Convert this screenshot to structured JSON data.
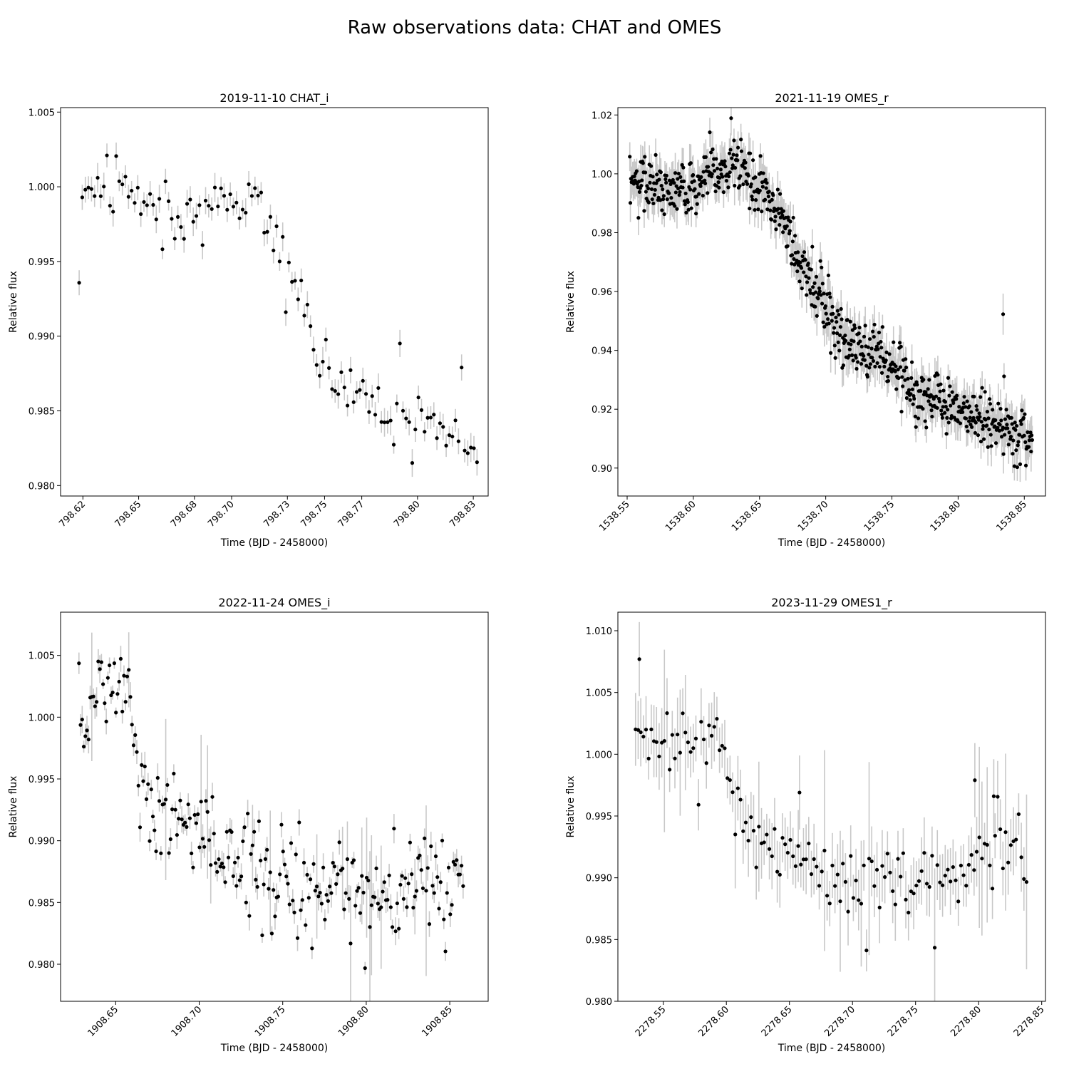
{
  "figure": {
    "title": "Raw observations data: CHAT and OMES"
  },
  "chart_data": [
    {
      "type": "scatter",
      "title": "2019-11-10 CHAT_i",
      "xlabel": "Time (BJD - 2458000)",
      "ylabel": "Relative flux",
      "xlim": [
        798.608,
        798.838
      ],
      "ylim": [
        0.9793,
        1.0053
      ],
      "xticks": [
        798.62,
        798.65,
        798.68,
        798.7,
        798.73,
        798.75,
        798.77,
        798.8,
        798.83
      ],
      "xtick_labels": [
        "798.62",
        "798.65",
        "798.68",
        "798.70",
        "798.73",
        "798.75",
        "798.77",
        "798.80",
        "798.83"
      ],
      "yticks": [
        0.98,
        0.985,
        0.99,
        0.995,
        1.0,
        1.005
      ],
      "ytick_labels": [
        "0.980",
        "0.985",
        "0.990",
        "0.995",
        "1.000",
        "1.005"
      ],
      "marker_color": "#000000",
      "errorbar_color": "#c8c8c8",
      "trend": [
        [
          798.618,
          0.9946
        ],
        [
          798.62,
          0.9992
        ],
        [
          798.628,
          0.9992
        ],
        [
          798.64,
          1.001
        ],
        [
          798.65,
          0.9992
        ],
        [
          798.66,
          0.9985
        ],
        [
          798.68,
          0.9987
        ],
        [
          798.7,
          0.9985
        ],
        [
          798.712,
          0.9988
        ],
        [
          798.72,
          0.997
        ],
        [
          798.728,
          0.9955
        ],
        [
          798.733,
          0.993
        ],
        [
          798.742,
          0.99
        ],
        [
          798.755,
          0.987
        ],
        [
          798.77,
          0.986
        ],
        [
          798.79,
          0.985
        ],
        [
          798.81,
          0.984
        ],
        [
          798.825,
          0.9838
        ],
        [
          798.832,
          0.9815
        ]
      ],
      "noise": 0.0009,
      "outlier_rate": 0.06,
      "outlier_amp": 0.002,
      "err_range": [
        0.0006,
        0.001
      ],
      "err_wide_rate": 0.0,
      "err_wide": 0.0,
      "n_points": 130,
      "seed": 11
    },
    {
      "type": "scatter",
      "title": "2021-11-19 OMES_r",
      "xlabel": "Time (BJD - 2458000)",
      "ylabel": "Relative flux",
      "xlim": [
        1538.543,
        1538.866
      ],
      "ylim": [
        0.8905,
        1.0225
      ],
      "xticks": [
        1538.55,
        1538.6,
        1538.65,
        1538.7,
        1538.75,
        1538.8,
        1538.85
      ],
      "xtick_labels": [
        "1538.55",
        "1538.60",
        "1538.65",
        "1538.70",
        "1538.75",
        "1538.80",
        "1538.85"
      ],
      "yticks": [
        0.9,
        0.92,
        0.94,
        0.96,
        0.98,
        1.0,
        1.02
      ],
      "ytick_labels": [
        "0.90",
        "0.92",
        "0.94",
        "0.96",
        "0.98",
        "1.00",
        "1.02"
      ],
      "marker_color": "#000000",
      "errorbar_color": "#c8c8c8",
      "trend": [
        [
          1538.552,
          0.9975
        ],
        [
          1538.575,
          0.996
        ],
        [
          1538.6,
          0.9935
        ],
        [
          1538.612,
          0.999
        ],
        [
          1538.63,
          1.003
        ],
        [
          1538.64,
          1.001
        ],
        [
          1538.655,
          0.993
        ],
        [
          1538.665,
          0.985
        ],
        [
          1538.68,
          0.968
        ],
        [
          1538.7,
          0.956
        ],
        [
          1538.712,
          0.945
        ],
        [
          1538.73,
          0.94
        ],
        [
          1538.75,
          0.934
        ],
        [
          1538.77,
          0.926
        ],
        [
          1538.79,
          0.921
        ],
        [
          1538.81,
          0.918
        ],
        [
          1538.83,
          0.913
        ],
        [
          1538.856,
          0.909
        ]
      ],
      "noise": 0.0042,
      "outlier_rate": 0.03,
      "outlier_amp": 0.009,
      "err_range": [
        0.004,
        0.007
      ],
      "err_wide_rate": 0.0,
      "err_wide": 0.0,
      "n_points": 700,
      "seed": 23,
      "extra_points": [
        [
          1538.834,
          0.9523
        ]
      ]
    },
    {
      "type": "scatter",
      "title": "2022-11-24 OMES_i",
      "xlabel": "Time (BJD - 2458000)",
      "ylabel": "Relative flux",
      "xlim": [
        1908.617,
        1908.873
      ],
      "ylim": [
        0.977,
        1.0085
      ],
      "xticks": [
        1908.65,
        1908.7,
        1908.75,
        1908.8,
        1908.85
      ],
      "xtick_labels": [
        "1908.65",
        "1908.70",
        "1908.75",
        "1908.80",
        "1908.85"
      ],
      "yticks": [
        0.98,
        0.985,
        0.99,
        0.995,
        1.0,
        1.005
      ],
      "ytick_labels": [
        "0.980",
        "0.985",
        "0.990",
        "0.995",
        "1.000",
        "1.005"
      ],
      "marker_color": "#000000",
      "errorbar_color": "#c8c8c8",
      "trend": [
        [
          1908.628,
          0.9995
        ],
        [
          1908.635,
          1.001
        ],
        [
          1908.642,
          1.003
        ],
        [
          1908.65,
          1.0035
        ],
        [
          1908.657,
          1.003
        ],
        [
          1908.662,
          0.997
        ],
        [
          1908.67,
          0.9935
        ],
        [
          1908.68,
          0.9925
        ],
        [
          1908.695,
          0.991
        ],
        [
          1908.71,
          0.9895
        ],
        [
          1908.73,
          0.988
        ],
        [
          1908.75,
          0.987
        ],
        [
          1908.77,
          0.986
        ],
        [
          1908.79,
          0.9855
        ],
        [
          1908.81,
          0.9855
        ],
        [
          1908.83,
          0.987
        ],
        [
          1908.858,
          0.987
        ]
      ],
      "noise": 0.0018,
      "outlier_rate": 0.05,
      "outlier_amp": 0.0035,
      "err_range": [
        0.0004,
        0.0012
      ],
      "err_wide_rate": 0.1,
      "err_wide": 0.004,
      "n_points": 240,
      "seed": 37
    },
    {
      "type": "scatter",
      "title": "2023-11-29 OMES1_r",
      "xlabel": "Time (BJD - 2458000)",
      "ylabel": "Relative flux",
      "xlim": [
        2278.514,
        2278.853
      ],
      "ylim": [
        0.98,
        1.0115
      ],
      "xticks": [
        2278.55,
        2278.6,
        2278.65,
        2278.7,
        2278.75,
        2278.8,
        2278.85
      ],
      "xtick_labels": [
        "2278.55",
        "2278.60",
        "2278.65",
        "2278.70",
        "2278.75",
        "2278.80",
        "2278.85"
      ],
      "yticks": [
        0.98,
        0.985,
        0.99,
        0.995,
        1.0,
        1.005,
        1.01
      ],
      "ytick_labels": [
        "0.980",
        "0.985",
        "0.990",
        "0.995",
        "1.000",
        "1.005",
        "1.010"
      ],
      "marker_color": "#000000",
      "errorbar_color": "#c8c8c8",
      "trend": [
        [
          2278.528,
          1.0008
        ],
        [
          2278.545,
          1.0005
        ],
        [
          2278.56,
          1.001
        ],
        [
          2278.575,
          1.0015
        ],
        [
          2278.592,
          1.0015
        ],
        [
          2278.6,
          0.999
        ],
        [
          2278.608,
          0.995
        ],
        [
          2278.62,
          0.993
        ],
        [
          2278.64,
          0.992
        ],
        [
          2278.66,
          0.9915
        ],
        [
          2278.68,
          0.9905
        ],
        [
          2278.7,
          0.9905
        ],
        [
          2278.72,
          0.99
        ],
        [
          2278.74,
          0.99
        ],
        [
          2278.76,
          0.99
        ],
        [
          2278.78,
          0.9905
        ],
        [
          2278.8,
          0.9915
        ],
        [
          2278.82,
          0.9915
        ],
        [
          2278.838,
          0.9915
        ]
      ],
      "noise": 0.0012,
      "outlier_rate": 0.06,
      "outlier_amp": 0.0035,
      "err_range": [
        0.0016,
        0.003
      ],
      "err_wide_rate": 0.06,
      "err_wide": 0.0045,
      "n_points": 150,
      "seed": 53,
      "extra_points": [
        [
          2278.531,
          1.0077
        ],
        [
          2278.797,
          0.9979
        ],
        [
          2278.812,
          0.9966
        ],
        [
          2278.658,
          0.9969
        ]
      ]
    }
  ]
}
